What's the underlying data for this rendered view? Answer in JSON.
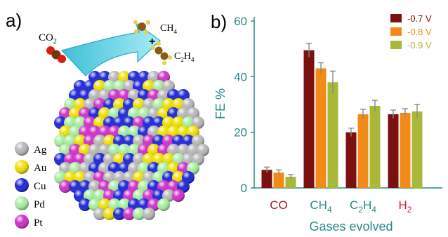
{
  "panel_a": {
    "label": "a)",
    "reactant": "CO",
    "reactant_sub": "2",
    "product_1": "CH",
    "product_1_sub": "4",
    "plus": "+",
    "product_2": "C",
    "product_2_sub1": "2",
    "product_2_mid": "H",
    "product_2_sub2": "4",
    "legend": [
      {
        "name": "Ag",
        "color": "#b8b8b8"
      },
      {
        "name": "Au",
        "color": "#f0e000"
      },
      {
        "name": "Cu",
        "color": "#1c25d8"
      },
      {
        "name": "Pd",
        "color": "#a8eea0"
      },
      {
        "name": "Pt",
        "color": "#d030c8"
      }
    ]
  },
  "chart_data": {
    "type": "bar",
    "panel_label": "b)",
    "categories": [
      "CO",
      "CH4",
      "C2H4",
      "H2"
    ],
    "category_label_parts": [
      [
        {
          "t": "CO",
          "sub": false
        }
      ],
      [
        {
          "t": "CH",
          "sub": false
        },
        {
          "t": "4",
          "sub": true
        }
      ],
      [
        {
          "t": "C",
          "sub": false
        },
        {
          "t": "2",
          "sub": true
        },
        {
          "t": "H",
          "sub": false
        },
        {
          "t": "4",
          "sub": true
        }
      ],
      [
        {
          "t": "H",
          "sub": false
        },
        {
          "t": "2",
          "sub": true
        }
      ]
    ],
    "category_colors": [
      "#b01818",
      "#2a8a86",
      "#2a8a86",
      "#d0202a"
    ],
    "series": [
      {
        "name": "-0.7 V",
        "color": "#7a1010",
        "values": [
          6.5,
          49.5,
          20,
          26.5
        ],
        "errors": [
          1.0,
          2.5,
          1.5,
          1.5
        ]
      },
      {
        "name": "-0.8 V",
        "color": "#f28a18",
        "values": [
          5.5,
          43,
          26.5,
          27
        ],
        "errors": [
          1.0,
          2.0,
          1.8,
          1.5
        ]
      },
      {
        "name": "-0.9 V",
        "color": "#a8b838",
        "values": [
          4,
          38,
          29.5,
          27.5
        ],
        "errors": [
          0.8,
          4.0,
          2.0,
          2.5
        ]
      }
    ],
    "ylabel": "FE %",
    "xlabel": "Gases evolved",
    "ylim": [
      0,
      60
    ],
    "yticks": [
      0,
      20,
      40,
      60
    ],
    "axis_color": "#2a8a86",
    "legend_position": "top-right",
    "grid": false
  }
}
